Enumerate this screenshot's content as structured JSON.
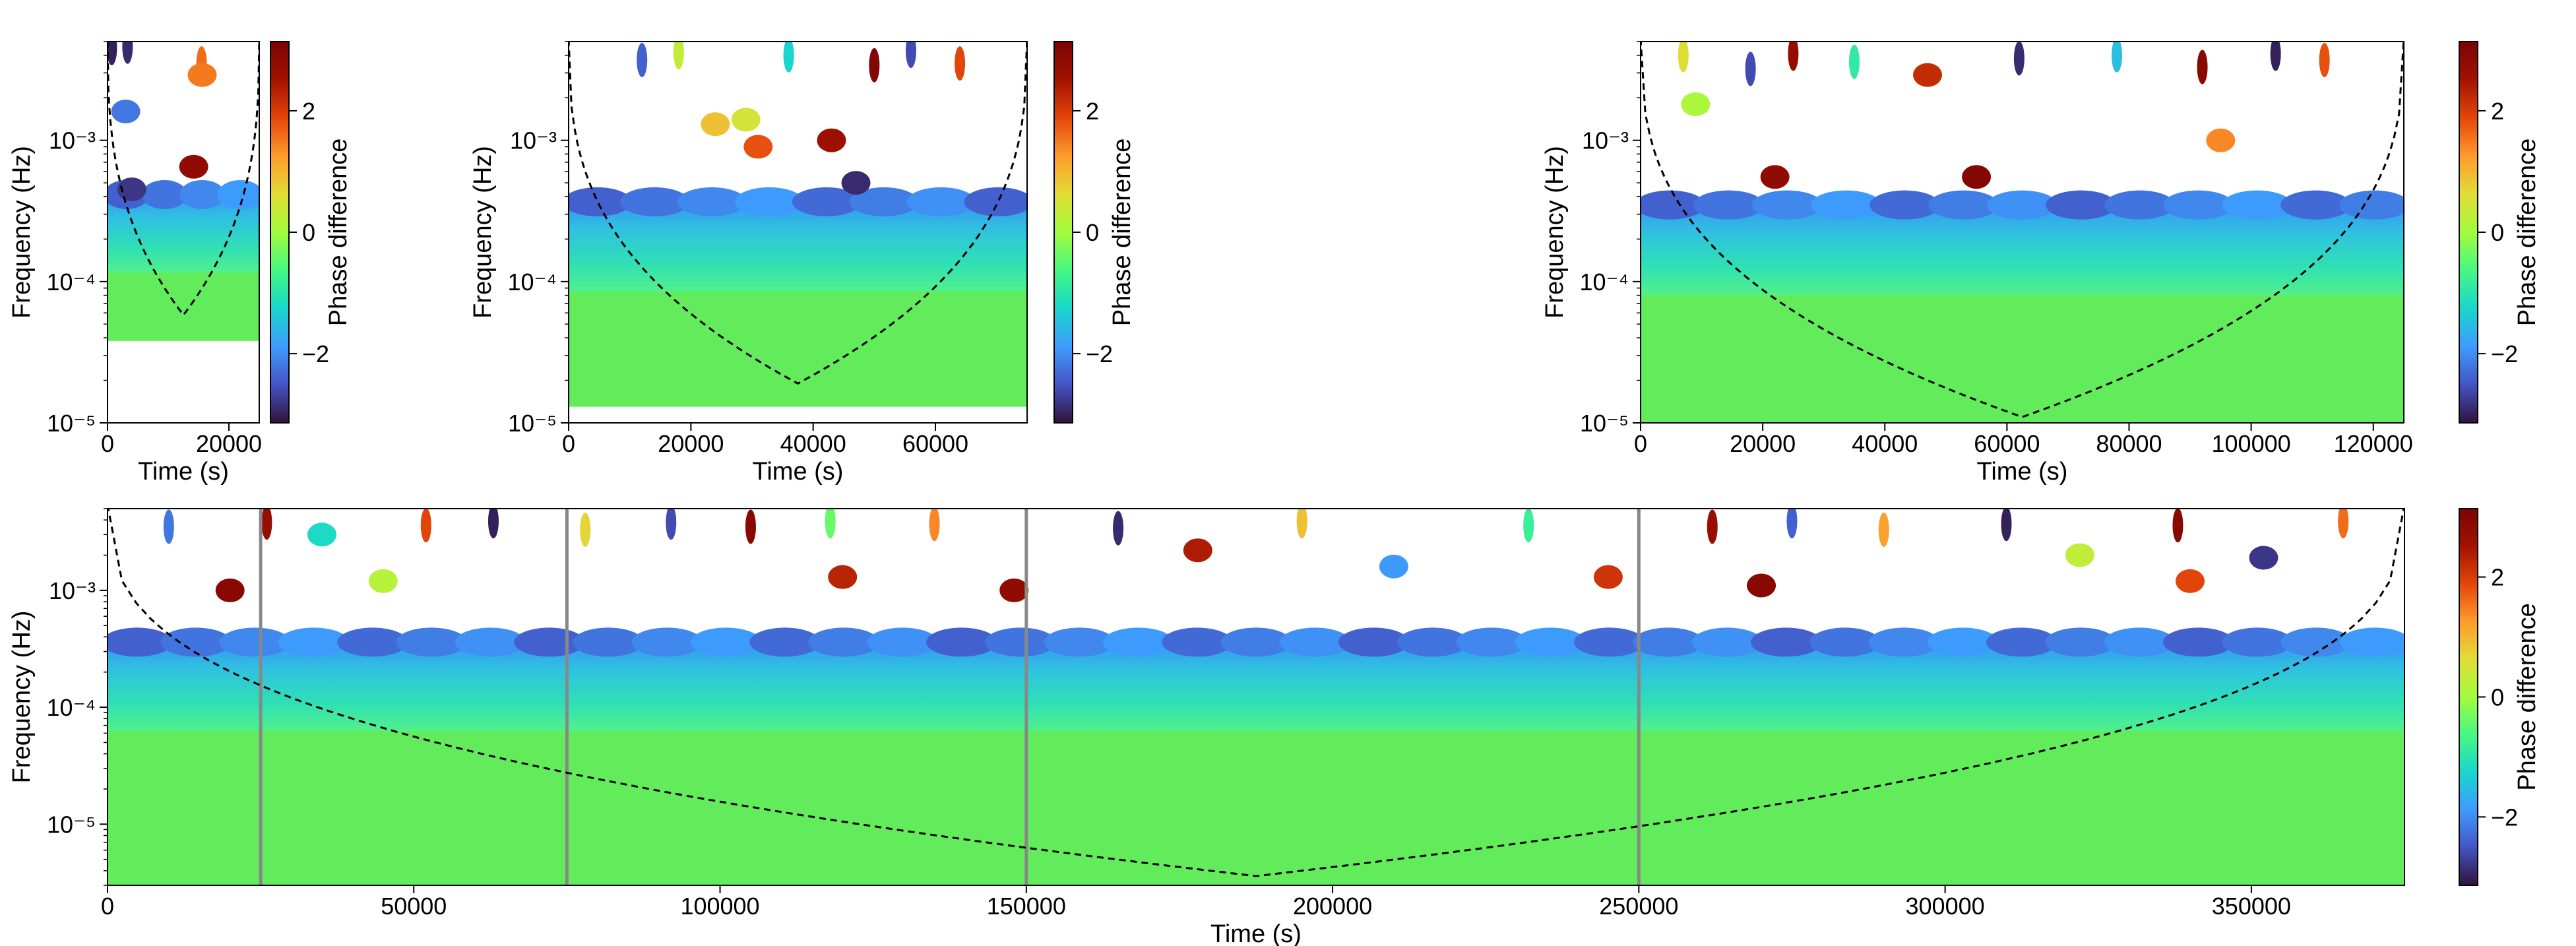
{
  "colorbar": {
    "label": "Phase difference",
    "range": [
      -3.14,
      3.14
    ],
    "ticks": [
      -2,
      0,
      2
    ],
    "tick_labels": [
      "−2",
      "0",
      "2"
    ],
    "colormap": "turbo",
    "stops": [
      "#30123b",
      "#4454c4",
      "#3e9bfe",
      "#18d7cb",
      "#46f884",
      "#a2fc3c",
      "#e1dd37",
      "#fe9b2d",
      "#e4460a",
      "#a21201",
      "#7a0403"
    ],
    "background_color": "#62ec5b",
    "coi_color": "#000000",
    "marker_line_color": "#888888"
  },
  "chart_data": [
    {
      "id": "panel-1",
      "type": "heatmap",
      "title": "",
      "xlabel": "Time (s)",
      "ylabel": "Frequency (Hz)",
      "xlim": [
        0,
        25000
      ],
      "ylim_hz": [
        1e-05,
        0.005
      ],
      "yscale": "log",
      "xticks": [
        0,
        20000
      ],
      "xtick_labels": [
        "0",
        "20000"
      ],
      "yticks": [
        1e-05,
        0.0001,
        0.001
      ],
      "ytick_labels": [
        "10⁻⁵",
        "10⁻⁴",
        "10⁻³"
      ],
      "band": {
        "x_start": 0,
        "x_end": 25000,
        "low_hz": 3.8e-05,
        "high_hz": 0.00045
      },
      "cone_of_influence_min_hz": 5.8e-05,
      "blobs": [
        {
          "t": 700,
          "f": 0.0045,
          "phase": -3.0
        },
        {
          "t": 3300,
          "f": 0.0046,
          "phase": -2.9
        },
        {
          "t": 15500,
          "f": 0.0035,
          "phase": 1.6
        },
        {
          "t": 15600,
          "f": 0.0029,
          "phase": 1.5
        },
        {
          "t": 3000,
          "f": 0.0016,
          "phase": -2.2
        },
        {
          "t": 14200,
          "f": 0.00065,
          "phase": 2.8
        },
        {
          "t": 4000,
          "f": 0.00045,
          "phase": -2.8
        }
      ],
      "colorbar_ticks": [
        "−2",
        "0",
        "2"
      ]
    },
    {
      "id": "panel-2",
      "type": "heatmap",
      "title": "",
      "xlabel": "Time (s)",
      "ylabel": "Frequency (Hz)",
      "xlim": [
        0,
        75000
      ],
      "ylim_hz": [
        1e-05,
        0.005
      ],
      "yscale": "log",
      "xticks": [
        0,
        20000,
        40000,
        60000
      ],
      "xtick_labels": [
        "0",
        "20000",
        "40000",
        "60000"
      ],
      "yticks": [
        1e-05,
        0.0001,
        0.001
      ],
      "ytick_labels": [
        "10⁻⁵",
        "10⁻⁴",
        "10⁻³"
      ],
      "band": {
        "x_start": 0,
        "x_end": 75000,
        "low_hz": 1.3e-05,
        "high_hz": 0.0004
      },
      "cone_of_influence_min_hz": 1.9e-05,
      "blobs": [
        {
          "t": 12000,
          "f": 0.0037,
          "phase": -2.4
        },
        {
          "t": 18000,
          "f": 0.0042,
          "phase": 0.3
        },
        {
          "t": 36000,
          "f": 0.004,
          "phase": -1.3
        },
        {
          "t": 50000,
          "f": 0.0034,
          "phase": 3.0
        },
        {
          "t": 56000,
          "f": 0.0043,
          "phase": -2.6
        },
        {
          "t": 64000,
          "f": 0.0035,
          "phase": 1.9
        },
        {
          "t": 24000,
          "f": 0.0013,
          "phase": 0.9
        },
        {
          "t": 31000,
          "f": 0.0009,
          "phase": 1.8
        },
        {
          "t": 43000,
          "f": 0.001,
          "phase": 2.6
        },
        {
          "t": 47000,
          "f": 0.0005,
          "phase": -2.9
        },
        {
          "t": 29000,
          "f": 0.0014,
          "phase": 0.5
        }
      ],
      "colorbar_ticks": [
        "−2",
        "0",
        "2"
      ]
    },
    {
      "id": "panel-3",
      "type": "heatmap",
      "title": "",
      "xlabel": "Time (s)",
      "ylabel": "Frequency (Hz)",
      "xlim": [
        0,
        125000
      ],
      "ylim_hz": [
        1e-05,
        0.005
      ],
      "yscale": "log",
      "xticks": [
        0,
        20000,
        40000,
        60000,
        80000,
        100000,
        120000
      ],
      "xtick_labels": [
        "0",
        "20000",
        "40000",
        "60000",
        "80000",
        "100000",
        "120000"
      ],
      "yticks": [
        1e-05,
        0.0001,
        0.001
      ],
      "ytick_labels": [
        "10⁻⁵",
        "10⁻⁴",
        "10⁻³"
      ],
      "band": {
        "x_start": 0,
        "x_end": 125000,
        "low_hz": 1e-05,
        "high_hz": 0.00038
      },
      "cone_of_influence_min_hz": 1.1e-05,
      "blobs": [
        {
          "t": 7000,
          "f": 0.004,
          "phase": 0.6
        },
        {
          "t": 18000,
          "f": 0.0032,
          "phase": -2.6
        },
        {
          "t": 25000,
          "f": 0.0041,
          "phase": 2.7
        },
        {
          "t": 35000,
          "f": 0.0036,
          "phase": -0.9
        },
        {
          "t": 47000,
          "f": 0.0029,
          "phase": 2.2
        },
        {
          "t": 62000,
          "f": 0.0038,
          "phase": -2.9
        },
        {
          "t": 78000,
          "f": 0.004,
          "phase": -1.5
        },
        {
          "t": 92000,
          "f": 0.0033,
          "phase": 2.9
        },
        {
          "t": 104000,
          "f": 0.0041,
          "phase": -3.0
        },
        {
          "t": 112000,
          "f": 0.0037,
          "phase": 1.8
        },
        {
          "t": 9000,
          "f": 0.0018,
          "phase": 0.1
        },
        {
          "t": 95000,
          "f": 0.001,
          "phase": 1.4
        },
        {
          "t": 22000,
          "f": 0.00055,
          "phase": 2.8
        },
        {
          "t": 55000,
          "f": 0.00055,
          "phase": 3.0
        }
      ],
      "colorbar_ticks": [
        "−2",
        "0",
        "2"
      ]
    },
    {
      "id": "panel-4",
      "type": "heatmap",
      "title": "",
      "xlabel": "Time (s)",
      "ylabel": "Frequency (Hz)",
      "xlim": [
        0,
        375000
      ],
      "ylim_hz": [
        3e-06,
        0.005
      ],
      "yscale": "log",
      "xticks": [
        0,
        50000,
        100000,
        150000,
        200000,
        250000,
        300000,
        350000
      ],
      "xtick_labels": [
        "0",
        "50000",
        "100000",
        "150000",
        "200000",
        "250000",
        "300000",
        "350000"
      ],
      "yticks": [
        1e-05,
        0.0001,
        0.001
      ],
      "ytick_labels": [
        "10⁻⁵",
        "10⁻⁴",
        "10⁻³"
      ],
      "band": {
        "x_start": 0,
        "x_end": 375000,
        "low_hz": 3e-06,
        "high_hz": 0.0004
      },
      "cone_of_influence_min_hz": 3.6e-06,
      "boundaries_s": [
        25000,
        75000,
        150000,
        250000
      ],
      "blobs": [
        {
          "t": 10000,
          "f": 0.0035,
          "phase": -2.2
        },
        {
          "t": 20000,
          "f": 0.001,
          "phase": 2.9
        },
        {
          "t": 26000,
          "f": 0.0038,
          "phase": 2.7
        },
        {
          "t": 35000,
          "f": 0.003,
          "phase": -1.2
        },
        {
          "t": 45000,
          "f": 0.0012,
          "phase": 0.2
        },
        {
          "t": 52000,
          "f": 0.0036,
          "phase": 1.9
        },
        {
          "t": 63000,
          "f": 0.0039,
          "phase": -3.0
        },
        {
          "t": 78000,
          "f": 0.0033,
          "phase": 0.7
        },
        {
          "t": 92000,
          "f": 0.0038,
          "phase": -2.6
        },
        {
          "t": 105000,
          "f": 0.0035,
          "phase": 2.9
        },
        {
          "t": 118000,
          "f": 0.0039,
          "phase": -0.4
        },
        {
          "t": 135000,
          "f": 0.0037,
          "phase": 1.4
        },
        {
          "t": 148000,
          "f": 0.001,
          "phase": 2.8
        },
        {
          "t": 165000,
          "f": 0.0034,
          "phase": -2.9
        },
        {
          "t": 178000,
          "f": 0.0022,
          "phase": 2.4
        },
        {
          "t": 195000,
          "f": 0.0039,
          "phase": 0.9
        },
        {
          "t": 210000,
          "f": 0.0016,
          "phase": -1.9
        },
        {
          "t": 232000,
          "f": 0.0036,
          "phase": -0.8
        },
        {
          "t": 245000,
          "f": 0.0013,
          "phase": 2.1
        },
        {
          "t": 262000,
          "f": 0.0035,
          "phase": 2.7
        },
        {
          "t": 275000,
          "f": 0.0039,
          "phase": -2.4
        },
        {
          "t": 290000,
          "f": 0.0033,
          "phase": 1.2
        },
        {
          "t": 310000,
          "f": 0.0037,
          "phase": -3.0
        },
        {
          "t": 322000,
          "f": 0.002,
          "phase": 0.3
        },
        {
          "t": 338000,
          "f": 0.0036,
          "phase": 2.9
        },
        {
          "t": 352000,
          "f": 0.0019,
          "phase": -2.8
        },
        {
          "t": 365000,
          "f": 0.0039,
          "phase": 1.6
        },
        {
          "t": 120000,
          "f": 0.0013,
          "phase": 2.3
        },
        {
          "t": 270000,
          "f": 0.0011,
          "phase": 2.9
        },
        {
          "t": 340000,
          "f": 0.0012,
          "phase": 1.9
        }
      ],
      "colorbar_ticks": [
        "−2",
        "0",
        "2"
      ]
    }
  ]
}
